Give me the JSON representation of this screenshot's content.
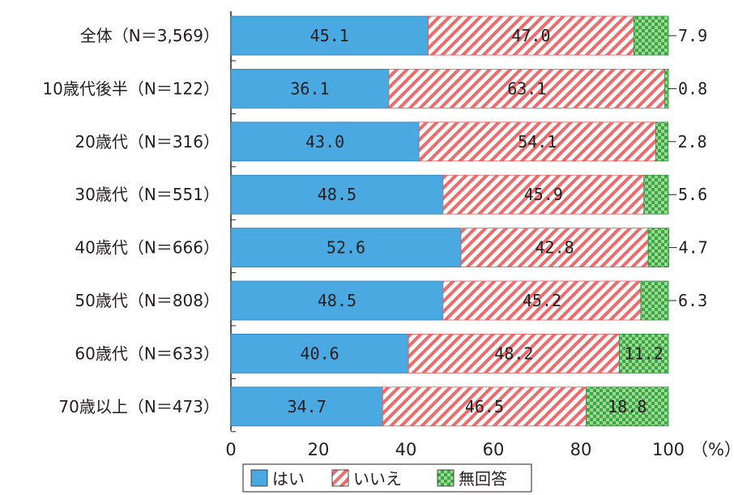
{
  "chart_data": {
    "type": "bar",
    "orientation": "horizontal",
    "stacked": true,
    "categories": [
      "全体（N＝3,569）",
      "10歳代後半（N＝122）",
      "20歳代（N＝316）",
      "30歳代（N＝551）",
      "40歳代（N＝666）",
      "50歳代（N＝808）",
      "60歳代（N＝633）",
      "70歳以上（N＝473）"
    ],
    "series": [
      {
        "name": "はい",
        "color": "#49a9e0",
        "pattern": "solid",
        "values": [
          45.1,
          36.1,
          43.0,
          48.5,
          52.6,
          48.5,
          40.6,
          34.7
        ],
        "labels": [
          "45.1",
          "36.1",
          "43.0",
          "48.5",
          "52.6",
          "48.5",
          "40.6",
          "34.7"
        ]
      },
      {
        "name": "いいえ",
        "color": "#ef6b6b",
        "pattern": "diagonal-stripes",
        "values": [
          47.0,
          63.1,
          54.1,
          45.9,
          42.8,
          45.2,
          48.2,
          46.5
        ],
        "labels": [
          "47.0",
          "63.1",
          "54.1",
          "45.9",
          "42.8",
          "45.2",
          "48.2",
          "46.5"
        ]
      },
      {
        "name": "無回答",
        "color": "#3aa84a",
        "pattern": "checker",
        "values": [
          7.9,
          0.8,
          2.8,
          5.6,
          4.7,
          6.3,
          11.2,
          18.8
        ],
        "labels": [
          "7.9",
          "0.8",
          "2.8",
          "5.6",
          "4.7",
          "6.3",
          "11.2",
          "18.8"
        ]
      }
    ],
    "xlim": [
      0,
      100
    ],
    "xticks": [
      "0",
      "20",
      "40",
      "60",
      "80",
      "100"
    ],
    "xunit": "（%）",
    "legend_position": "bottom",
    "grid": false
  }
}
